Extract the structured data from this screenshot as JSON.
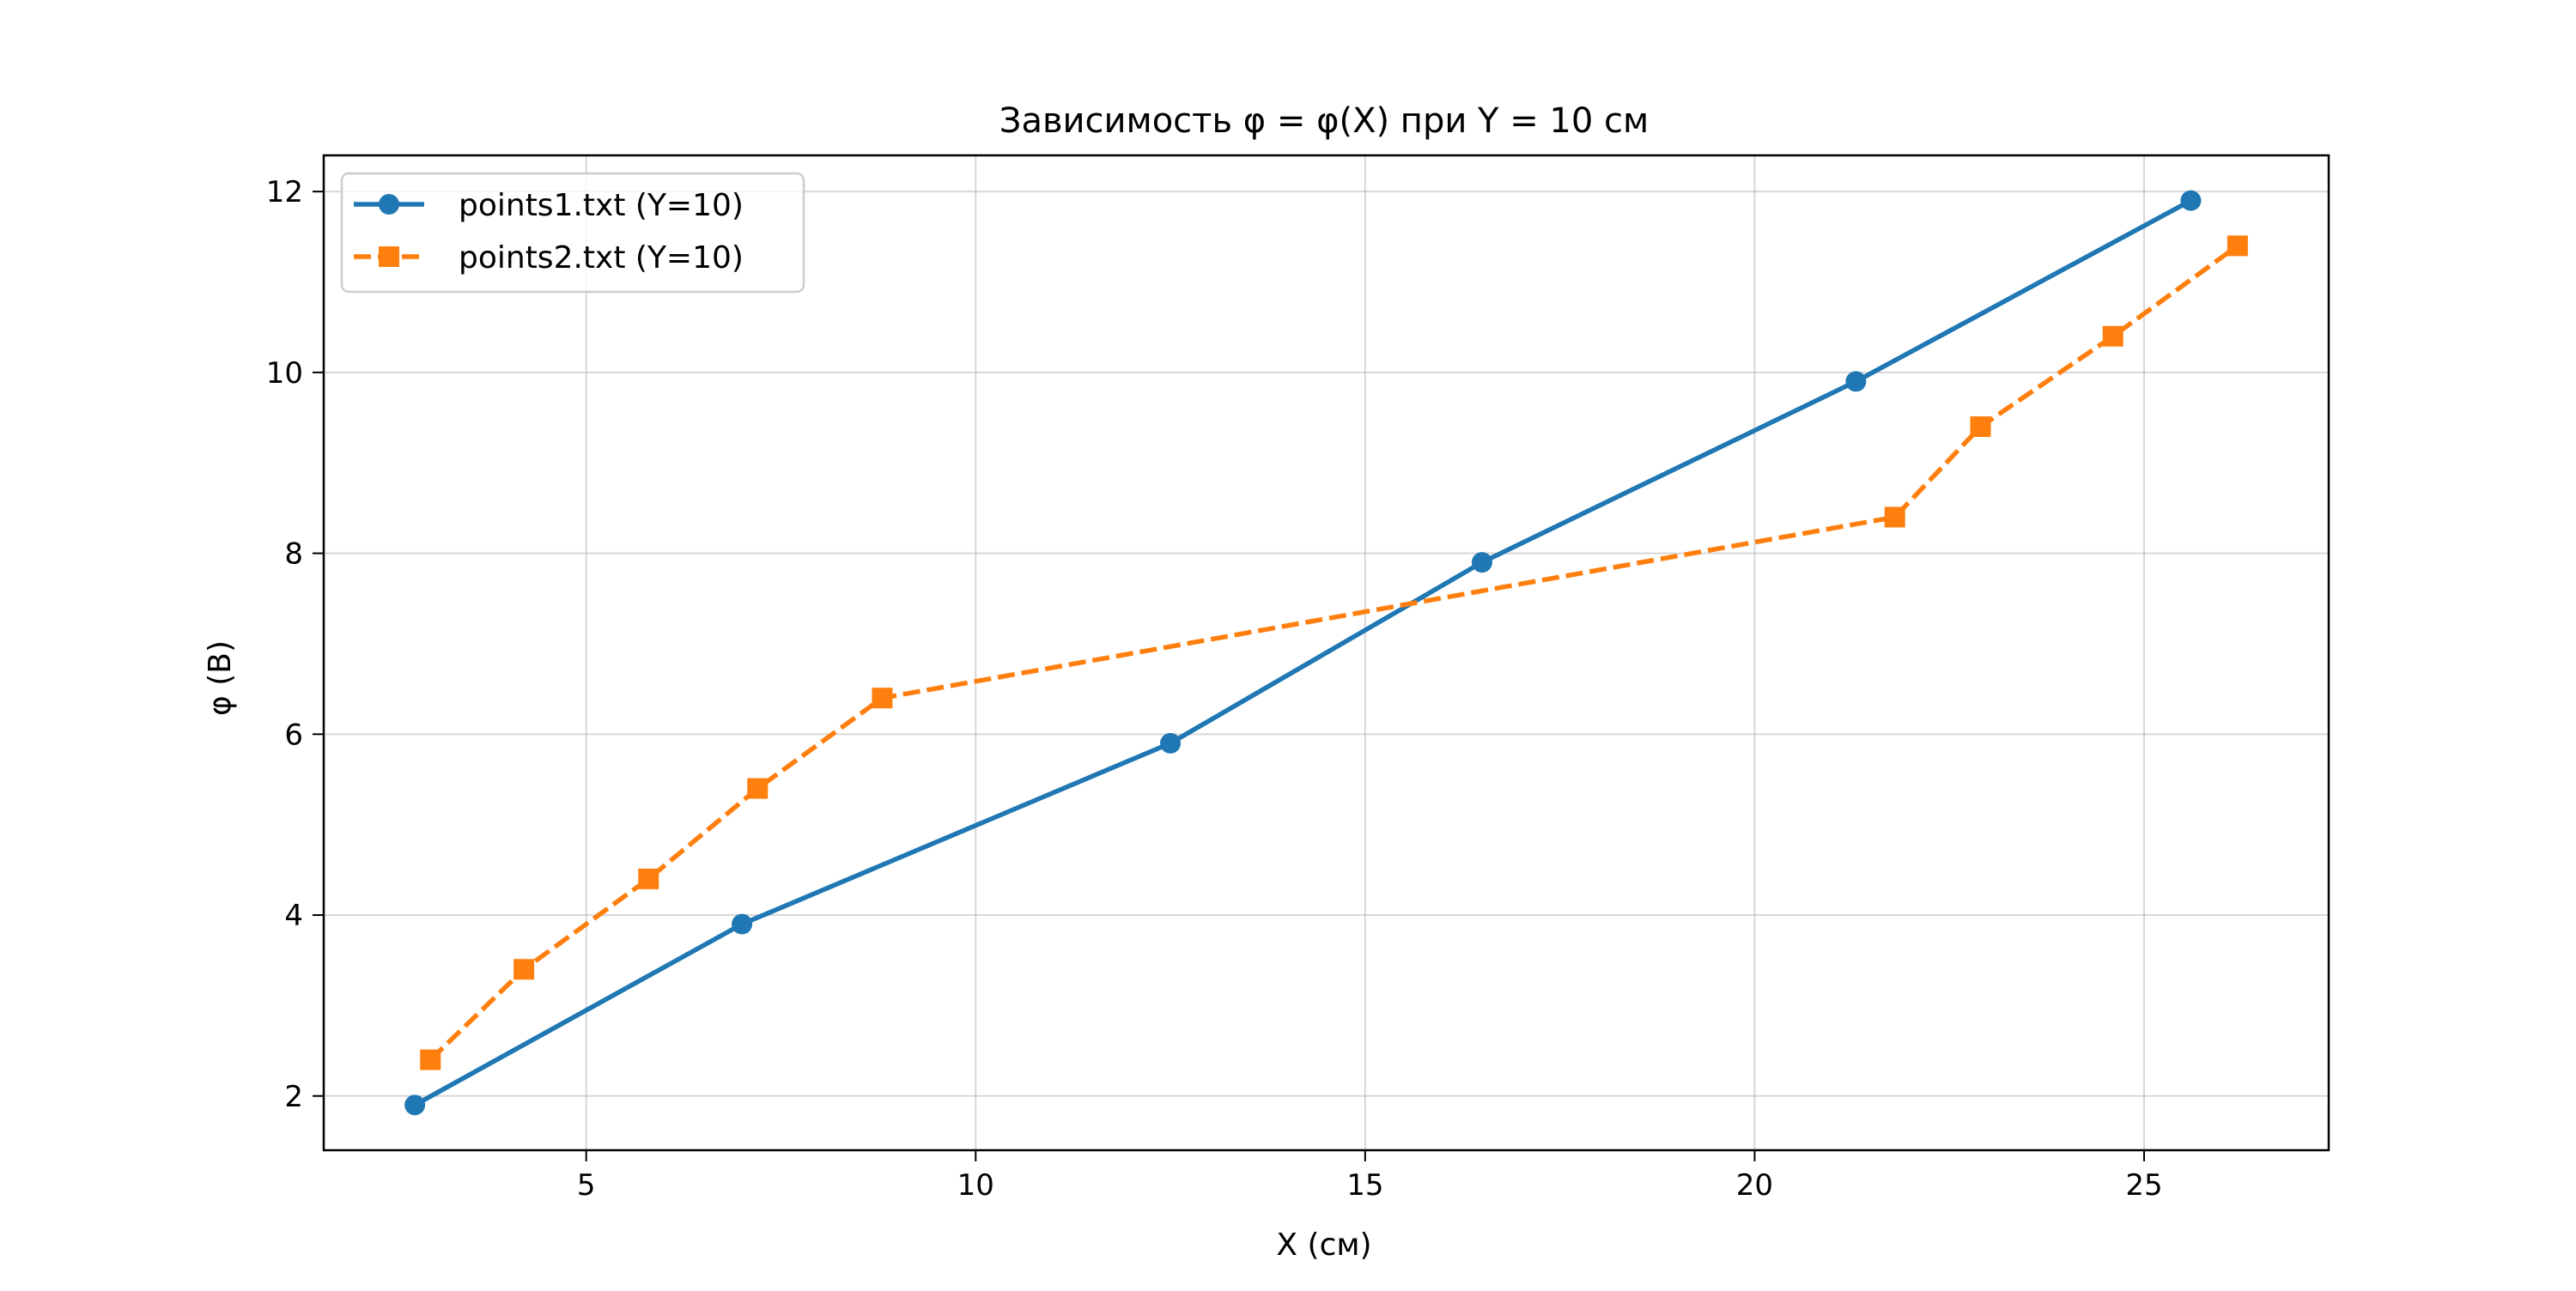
{
  "chart_data": {
    "type": "line",
    "title": "Зависимость φ = φ(X) при Y = 10 см",
    "xlabel": "X (см)",
    "ylabel": "φ (В)",
    "xlim": [
      1.63,
      27.37
    ],
    "ylim": [
      1.4,
      12.4
    ],
    "xticks": [
      5,
      10,
      15,
      20,
      25
    ],
    "yticks": [
      2,
      4,
      6,
      8,
      10,
      12
    ],
    "grid": true,
    "legend_position": "top-left",
    "series": [
      {
        "name": "points1.txt (Y=10)",
        "color": "#1f77b4",
        "marker": "circle",
        "linestyle": "solid",
        "x": [
          2.8,
          7.0,
          12.5,
          16.5,
          21.3,
          25.6
        ],
        "y": [
          1.9,
          3.9,
          5.9,
          7.9,
          9.9,
          11.9
        ]
      },
      {
        "name": "points2.txt (Y=10)",
        "color": "#ff7f0e",
        "marker": "square",
        "linestyle": "dashed",
        "x": [
          3.0,
          4.2,
          5.8,
          7.2,
          8.8,
          21.8,
          22.9,
          24.6,
          26.2
        ],
        "y": [
          2.4,
          3.4,
          4.4,
          5.4,
          6.4,
          8.4,
          9.4,
          10.4,
          11.4
        ]
      }
    ]
  }
}
